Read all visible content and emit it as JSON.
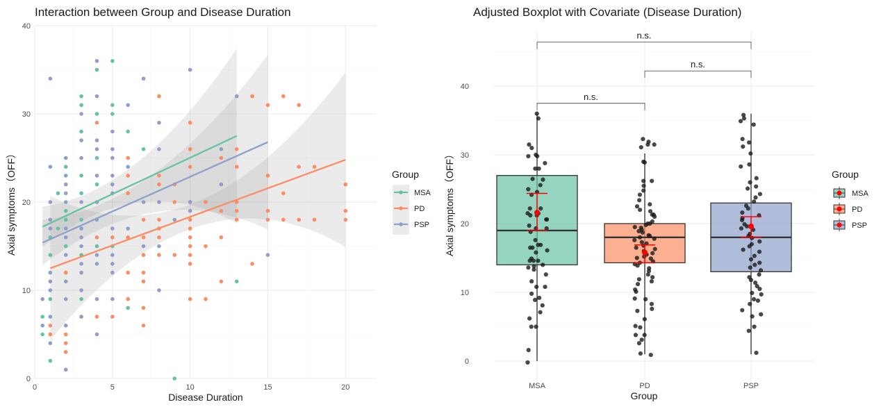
{
  "chart_data": [
    {
      "type": "scatter",
      "title": "Interaction between Group and Disease Duration",
      "xlabel": "Disease Duration",
      "ylabel": "Axial symptoms（OFF）",
      "xlim": [
        0,
        22
      ],
      "ylim": [
        0,
        40
      ],
      "xticks": [
        0,
        5,
        10,
        15,
        20
      ],
      "yticks": [
        0,
        10,
        20,
        30,
        40
      ],
      "grid": true,
      "legend": {
        "title": "Group",
        "position": "right",
        "entries": [
          "MSA",
          "PD",
          "PSP"
        ]
      },
      "colors": {
        "MSA": "#66c2a5",
        "PD": "#fc8d62",
        "PSP": "#8da0cb"
      },
      "series": [
        {
          "name": "MSA",
          "points": [
            [
              0.5,
              7
            ],
            [
              0.5,
              5
            ],
            [
              1,
              9
            ],
            [
              1,
              14
            ],
            [
              1,
              2
            ],
            [
              1,
              16
            ],
            [
              1.5,
              21
            ],
            [
              1.5,
              17
            ],
            [
              2,
              24
            ],
            [
              2,
              19
            ],
            [
              2,
              18
            ],
            [
              2,
              15
            ],
            [
              3,
              32
            ],
            [
              3,
              31
            ],
            [
              3,
              28
            ],
            [
              3,
              23
            ],
            [
              3,
              21
            ],
            [
              3,
              18
            ],
            [
              3,
              14
            ],
            [
              3,
              9
            ],
            [
              4,
              35
            ],
            [
              4,
              30
            ],
            [
              4,
              25
            ],
            [
              4,
              22
            ],
            [
              4,
              15
            ],
            [
              5,
              36
            ],
            [
              5,
              31
            ],
            [
              5,
              30
            ],
            [
              5,
              15
            ],
            [
              6,
              28
            ],
            [
              6,
              8
            ],
            [
              7,
              26
            ],
            [
              9,
              0
            ],
            [
              13,
              11
            ]
          ],
          "fit": {
            "x": [
              0.5,
              13
            ],
            "y": [
              17.2,
              27.5
            ]
          }
        },
        {
          "name": "PD",
          "points": [
            [
              1,
              6
            ],
            [
              1,
              5
            ],
            [
              2,
              5
            ],
            [
              2,
              4
            ],
            [
              2,
              3
            ],
            [
              2,
              12
            ],
            [
              4,
              29
            ],
            [
              4,
              7
            ],
            [
              4,
              16
            ],
            [
              5,
              7
            ],
            [
              5,
              16
            ],
            [
              6,
              25
            ],
            [
              6,
              23
            ],
            [
              6,
              21
            ],
            [
              6,
              12
            ],
            [
              6,
              9
            ],
            [
              6,
              16
            ],
            [
              7,
              18
            ],
            [
              7,
              16
            ],
            [
              7,
              14
            ],
            [
              7,
              12
            ],
            [
              7,
              11
            ],
            [
              7,
              8
            ],
            [
              7,
              6
            ],
            [
              8,
              32
            ],
            [
              8,
              23
            ],
            [
              8,
              22
            ],
            [
              8,
              20
            ],
            [
              8,
              18
            ],
            [
              8,
              17
            ],
            [
              8,
              16
            ],
            [
              8,
              14
            ],
            [
              9,
              22
            ],
            [
              9,
              20
            ],
            [
              9,
              14
            ],
            [
              10,
              29
            ],
            [
              10,
              26
            ],
            [
              10,
              24
            ],
            [
              10,
              20
            ],
            [
              10,
              19
            ],
            [
              10,
              18
            ],
            [
              10,
              17
            ],
            [
              10,
              16
            ],
            [
              10,
              15
            ],
            [
              10,
              14
            ],
            [
              10,
              13
            ],
            [
              10,
              9
            ],
            [
              11,
              20
            ],
            [
              11,
              15
            ],
            [
              11,
              9
            ],
            [
              12,
              25
            ],
            [
              12,
              19
            ],
            [
              12,
              16
            ],
            [
              12,
              11
            ],
            [
              13,
              26
            ],
            [
              13,
              24
            ],
            [
              13,
              20
            ],
            [
              13,
              19
            ],
            [
              13,
              18
            ],
            [
              14,
              32
            ],
            [
              14,
              13
            ],
            [
              15,
              31
            ],
            [
              15,
              23
            ],
            [
              15,
              19
            ],
            [
              15,
              18
            ],
            [
              16,
              32
            ],
            [
              16,
              21
            ],
            [
              16,
              18
            ],
            [
              17,
              31
            ],
            [
              17,
              24
            ],
            [
              17,
              18
            ],
            [
              18,
              24
            ],
            [
              18,
              18
            ],
            [
              20,
              22
            ],
            [
              20,
              19
            ],
            [
              20,
              18
            ]
          ],
          "fit": {
            "x": [
              1,
              20
            ],
            "y": [
              12.5,
              24.8
            ]
          }
        },
        {
          "name": "PSP",
          "points": [
            [
              0.5,
              9
            ],
            [
              0.5,
              6
            ],
            [
              1,
              34
            ],
            [
              1,
              24
            ],
            [
              1,
              20
            ],
            [
              1,
              18
            ],
            [
              1,
              17
            ],
            [
              1,
              12
            ],
            [
              1,
              11
            ],
            [
              1,
              10
            ],
            [
              1,
              7
            ],
            [
              1,
              4
            ],
            [
              2,
              25
            ],
            [
              2,
              23
            ],
            [
              2,
              22
            ],
            [
              2,
              21
            ],
            [
              2,
              20
            ],
            [
              2,
              17
            ],
            [
              2,
              16
            ],
            [
              2,
              14
            ],
            [
              2,
              11
            ],
            [
              2,
              9
            ],
            [
              2,
              6
            ],
            [
              2,
              1
            ],
            [
              3,
              30
            ],
            [
              3,
              27
            ],
            [
              3,
              25
            ],
            [
              3,
              20
            ],
            [
              3,
              17
            ],
            [
              3,
              16
            ],
            [
              3,
              15
            ],
            [
              3,
              13
            ],
            [
              3,
              12
            ],
            [
              3,
              10
            ],
            [
              3,
              7
            ],
            [
              4,
              36
            ],
            [
              4,
              32
            ],
            [
              4,
              27
            ],
            [
              4,
              26
            ],
            [
              4,
              23
            ],
            [
              4,
              20
            ],
            [
              4,
              18
            ],
            [
              4,
              14
            ],
            [
              4,
              13
            ],
            [
              4,
              9
            ],
            [
              4,
              5
            ],
            [
              5,
              28
            ],
            [
              5,
              26
            ],
            [
              5,
              25
            ],
            [
              5,
              23
            ],
            [
              5,
              22
            ],
            [
              5,
              21
            ],
            [
              5,
              17
            ],
            [
              5,
              14
            ],
            [
              5,
              13
            ],
            [
              5,
              12
            ],
            [
              5,
              9
            ],
            [
              6,
              31
            ],
            [
              6,
              24
            ],
            [
              6,
              17
            ],
            [
              7,
              34
            ],
            [
              7,
              20
            ],
            [
              7,
              15
            ],
            [
              8,
              29
            ],
            [
              8,
              26
            ],
            [
              8,
              20
            ],
            [
              8,
              15
            ],
            [
              8,
              10
            ],
            [
              9,
              18
            ],
            [
              10,
              35
            ],
            [
              10,
              20
            ],
            [
              10,
              19
            ],
            [
              12,
              26
            ],
            [
              12,
              22
            ],
            [
              13,
              32
            ],
            [
              15,
              14
            ]
          ],
          "fit": {
            "x": [
              0.5,
              15
            ],
            "y": [
              15.4,
              26.8
            ]
          }
        }
      ]
    },
    {
      "type": "box",
      "title": "Adjusted Boxplot with Covariate (Disease Duration)",
      "xlabel": "Group",
      "ylabel": "Axial symptoms（OFF）",
      "categories": [
        "MSA",
        "PD",
        "PSP"
      ],
      "ylim": [
        -2,
        48
      ],
      "yticks": [
        0,
        10,
        20,
        30,
        40
      ],
      "grid": true,
      "legend": {
        "title": "Group",
        "position": "right",
        "entries": [
          "MSA",
          "PD",
          "PSP"
        ]
      },
      "colors": {
        "MSA": "#66c2a5",
        "PD": "#fc8d62",
        "PSP": "#8da0cb",
        "mean": "#ff0000",
        "points": "#1a1a1a"
      },
      "boxes": [
        {
          "name": "MSA",
          "whisker_low": 0,
          "q1": 14,
          "median": 19,
          "q3": 27,
          "whisker_high": 36,
          "adjusted_mean": 21.6,
          "ci": [
            19,
            24.4
          ]
        },
        {
          "name": "PD",
          "whisker_low": 1,
          "q1": 14.3,
          "median": 18,
          "q3": 20,
          "whisker_high": 30.2,
          "adjusted_mean": 15.8,
          "ci": [
            14.3,
            16.9
          ]
        },
        {
          "name": "PSP",
          "whisker_low": 1,
          "q1": 13,
          "median": 18,
          "q3": 23,
          "whisker_high": 36,
          "adjusted_mean": 19.6,
          "ci": [
            18,
            21
          ]
        }
      ],
      "jitter_points": {
        "MSA": [
          36,
          35.3,
          31.5,
          31,
          30,
          29.8,
          29.8,
          28.8,
          28,
          28,
          26.5,
          26.4,
          25.6,
          25,
          24.6,
          24.2,
          22.2,
          22.2,
          21.5,
          21.2,
          21.2,
          21.5,
          20.6,
          20.6,
          19.7,
          19.3,
          19.3,
          18.8,
          17.6,
          16.9,
          16.9,
          16.5,
          16.5,
          16.1,
          15.8,
          14.9,
          14.6,
          14.6,
          14.6,
          14,
          13.8,
          13.3,
          13.6,
          12.6,
          11.6,
          10.8,
          10.8,
          9.8,
          9.2,
          8.9,
          8.1,
          7.1,
          6.2,
          5,
          5,
          1.6,
          -0.2
        ],
        "PD": [
          32.3,
          31.9,
          31.5,
          31.5,
          31.1,
          29,
          28.9,
          26.2,
          26.2,
          25.5,
          24.8,
          24.2,
          23.4,
          22.8,
          22.5,
          22,
          21.8,
          21.3,
          21,
          21.3,
          20.3,
          20,
          20,
          19.8,
          19.5,
          19.4,
          19.1,
          18.9,
          18.7,
          18.3,
          18.2,
          18,
          17.8,
          17.6,
          17.3,
          17.1,
          16.8,
          16.5,
          16.3,
          16,
          15.7,
          15.5,
          15.2,
          15,
          14.9,
          14.5,
          14.3,
          14.1,
          13.9,
          13.5,
          13.1,
          12.6,
          12.2,
          11.9,
          11.6,
          11.2,
          10.4,
          10.1,
          9.1,
          9,
          8.3,
          7.6,
          7.3,
          6.1,
          5.1,
          4.9,
          3.8,
          3.8,
          3.1,
          2.6,
          1.1,
          0.9
        ],
        "PSP": [
          35.8,
          35.3,
          34.9,
          34.4,
          32.3,
          31.8,
          31.2,
          30.2,
          28.6,
          28.3,
          26.6,
          26,
          25.4,
          25.1,
          24.3,
          23.8,
          23.2,
          22.6,
          22.2,
          21.6,
          21.2,
          20.8,
          20.5,
          19.9,
          19.6,
          19.3,
          19.1,
          18.5,
          18.2,
          17.9,
          17.4,
          17,
          16.7,
          16.2,
          15.9,
          15.3,
          14.8,
          14.3,
          14,
          13.6,
          13.2,
          12.6,
          12.2,
          11.8,
          11.4,
          10.9,
          10.5,
          9.9,
          9.7,
          9,
          8.8,
          8.3,
          7.4,
          6.8,
          6.5,
          5,
          4.4,
          1.2
        ],
        "color": "#1a1a1a"
      },
      "significance": [
        {
          "from": "MSA",
          "to": "PD",
          "label": "n.s.",
          "y": 37.5
        },
        {
          "from": "PD",
          "to": "PSP",
          "label": "n.s.",
          "y": 42.2
        },
        {
          "from": "MSA",
          "to": "PSP",
          "label": "n.s.",
          "y": 46.4
        }
      ]
    }
  ]
}
